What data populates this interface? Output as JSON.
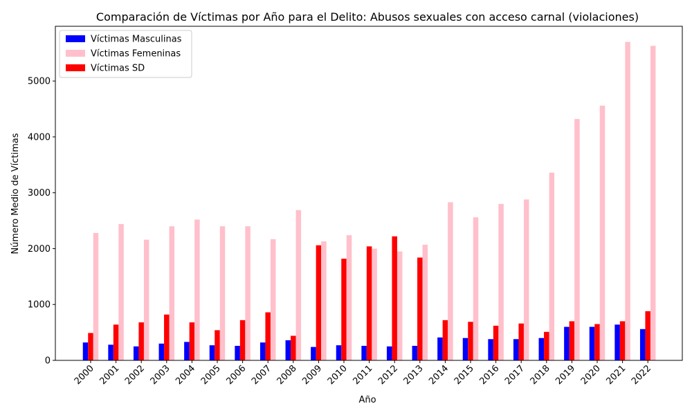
{
  "chart_data": {
    "type": "bar",
    "title": "Comparación de Víctimas por Año para el Delito: Abusos sexuales con acceso carnal (violaciones)",
    "xlabel": "Año",
    "ylabel": "Número Medio de Víctimas",
    "categories": [
      "2000",
      "2001",
      "2002",
      "2003",
      "2004",
      "2005",
      "2006",
      "2007",
      "2008",
      "2009",
      "2010",
      "2011",
      "2012",
      "2013",
      "2014",
      "2015",
      "2016",
      "2017",
      "2018",
      "2019",
      "2020",
      "2021",
      "2022"
    ],
    "ylim": [
      0,
      5980
    ],
    "yticks": [
      0,
      1000,
      2000,
      3000,
      4000,
      5000
    ],
    "legend_position": "top-left",
    "grid": false,
    "series": [
      {
        "name": "Víctimas Masculinas",
        "color": "#0000ff",
        "values": [
          320,
          280,
          250,
          300,
          330,
          270,
          260,
          320,
          360,
          240,
          270,
          260,
          250,
          260,
          410,
          400,
          380,
          380,
          400,
          600,
          600,
          640,
          560
        ]
      },
      {
        "name": "Víctimas SD",
        "color": "#ff0000",
        "values": [
          490,
          640,
          680,
          820,
          680,
          540,
          720,
          860,
          440,
          2060,
          1820,
          2040,
          2220,
          1840,
          720,
          690,
          620,
          660,
          510,
          700,
          650,
          700,
          880
        ]
      },
      {
        "name": "Víctimas Femeninas",
        "color": "#ffc0cb",
        "values": [
          2280,
          2440,
          2160,
          2400,
          2520,
          2400,
          2400,
          2170,
          2690,
          2130,
          2240,
          2000,
          1950,
          2070,
          2830,
          2560,
          2800,
          2880,
          3360,
          4320,
          4560,
          5700,
          5630
        ]
      }
    ],
    "legend_order": [
      "Víctimas Masculinas",
      "Víctimas Femeninas",
      "Víctimas SD"
    ]
  }
}
